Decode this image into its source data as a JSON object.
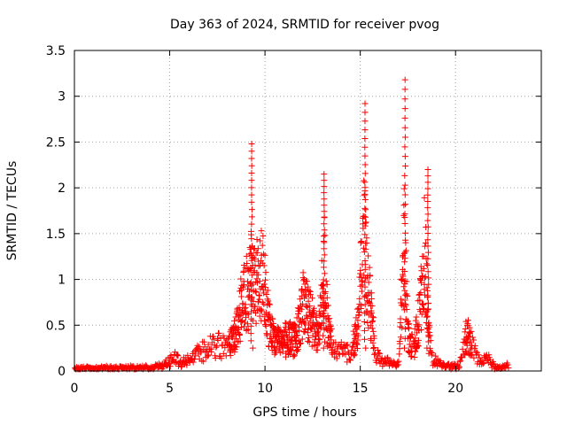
{
  "chart_data": {
    "type": "scatter",
    "title": "Day 363 of 2024, SRMTID for receiver pvog",
    "xlabel": "GPS time / hours",
    "ylabel": "SRMTID / TECUs",
    "xlim": [
      0,
      24.5
    ],
    "ylim": [
      0,
      3.5
    ],
    "xticks": [
      0,
      5,
      10,
      15,
      20
    ],
    "xtick_labels": [
      "0",
      "5",
      "10",
      "15",
      "20"
    ],
    "yticks": [
      0,
      0.5,
      1,
      1.5,
      2,
      2.5,
      3,
      3.5
    ],
    "ytick_labels": [
      "0",
      "0.5",
      "1",
      "1.5",
      "2",
      "2.5",
      "3",
      "3.5"
    ],
    "grid": true,
    "marker": "+",
    "color": "#ff0000",
    "envelope": {
      "description": "approximate trace of the SRMTID point cloud over the day (hours, TECU)",
      "x": [
        0,
        1,
        2,
        3,
        4,
        4.5,
        5,
        5.3,
        5.6,
        6,
        6.5,
        7,
        7.5,
        8,
        8.4,
        8.7,
        9,
        9.3,
        9.6,
        9.9,
        10.2,
        10.5,
        10.8,
        11.2,
        11.6,
        12,
        12.4,
        12.8,
        13.1,
        13.3,
        13.6,
        14,
        14.5,
        14.9,
        15.2,
        15.4,
        15.6,
        15.8,
        16.1,
        16.5,
        17,
        17.3,
        17.5,
        17.8,
        18.1,
        18.4,
        18.6,
        18.8,
        19.2,
        19.7,
        20.2,
        20.6,
        20.9,
        21.3,
        21.7,
        22.1,
        22.4,
        22.8
      ],
      "y": [
        0.05,
        0.04,
        0.04,
        0.05,
        0.06,
        0.08,
        0.15,
        0.2,
        0.12,
        0.18,
        0.26,
        0.32,
        0.38,
        0.36,
        0.5,
        0.9,
        1.2,
        1.4,
        1.3,
        1.5,
        0.7,
        0.5,
        0.4,
        0.5,
        0.45,
        1.0,
        0.8,
        0.5,
        1.6,
        0.7,
        0.3,
        0.3,
        0.25,
        0.7,
        2.1,
        1.2,
        0.8,
        0.25,
        0.15,
        0.12,
        0.1,
        1.9,
        0.5,
        0.35,
        0.8,
        1.9,
        0.5,
        0.2,
        0.1,
        0.06,
        0.08,
        0.55,
        0.35,
        0.12,
        0.18,
        0.06,
        0.05,
        0.08
      ]
    },
    "spikes": [
      {
        "x": 9.3,
        "y": 2.48
      },
      {
        "x": 13.1,
        "y": 2.15
      },
      {
        "x": 15.25,
        "y": 2.92
      },
      {
        "x": 17.35,
        "y": 3.18
      },
      {
        "x": 18.55,
        "y": 2.2
      }
    ]
  }
}
